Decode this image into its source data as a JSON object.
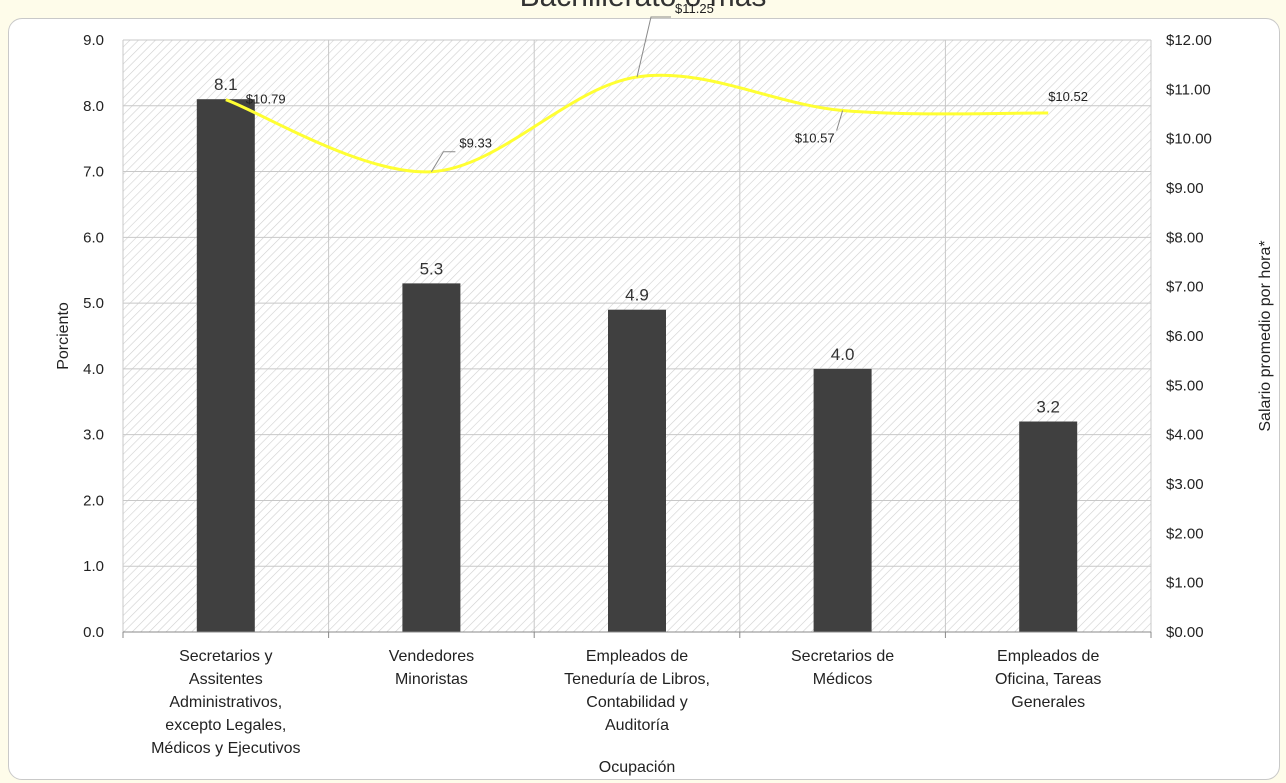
{
  "chart_data": {
    "type": "bar",
    "title": "Bachillerato o más",
    "xlabel": "Ocupación",
    "ylabel": "Porciento",
    "y2label": "Salario promedio por hora*",
    "ylim": [
      0,
      9
    ],
    "y2lim": [
      0,
      12
    ],
    "yticks": [
      "0.0",
      "1.0",
      "2.0",
      "3.0",
      "4.0",
      "5.0",
      "6.0",
      "7.0",
      "8.0",
      "9.0"
    ],
    "y2ticks": [
      "$0.00",
      "$1.00",
      "$2.00",
      "$3.00",
      "$4.00",
      "$5.00",
      "$6.00",
      "$7.00",
      "$8.00",
      "$9.00",
      "$10.00",
      "$11.00",
      "$12.00"
    ],
    "grid": true,
    "categories": [
      [
        "Secretarios y",
        "Assitentes",
        "Administrativos,",
        "excepto Legales,",
        "Médicos y Ejecutivos"
      ],
      [
        "Vendedores",
        "Minoristas"
      ],
      [
        "Empleados de",
        "Teneduría de Libros,",
        "Contabilidad y",
        "Auditoría"
      ],
      [
        "Secretarios de",
        "Médicos"
      ],
      [
        "Empleados de",
        "Oficina, Tareas",
        "Generales"
      ]
    ],
    "series": [
      {
        "type": "bar",
        "values": [
          8.1,
          5.3,
          4.9,
          4.0,
          3.2
        ],
        "labels": [
          "8.1",
          "5.3",
          "4.9",
          "4.0",
          "3.2"
        ],
        "color": "#404040"
      },
      {
        "type": "line",
        "axis": "secondary",
        "values": [
          10.79,
          9.33,
          11.25,
          10.57,
          10.52
        ],
        "labels": [
          "$10.79",
          "$9.33",
          "$11.25",
          "$10.57",
          "$10.52"
        ],
        "color": "#ffff33"
      }
    ]
  }
}
